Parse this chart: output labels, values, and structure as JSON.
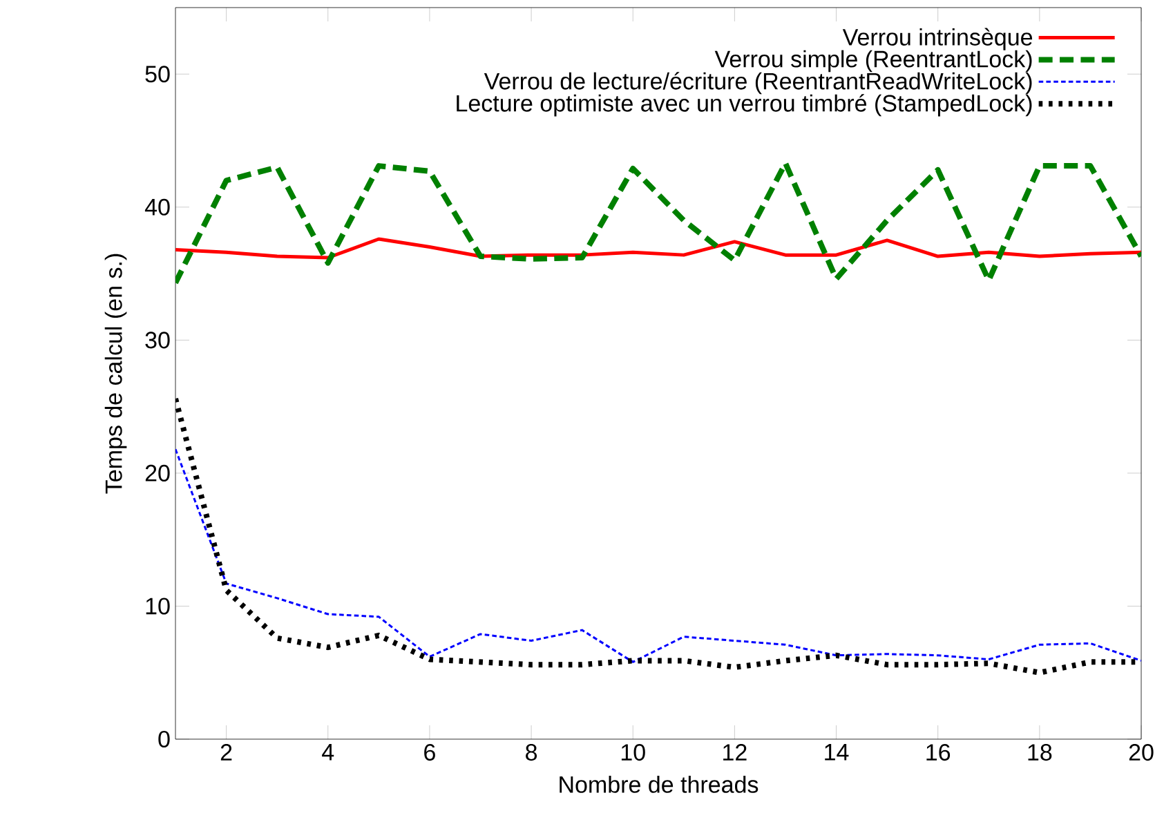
{
  "chart_data": {
    "type": "line",
    "xlabel": "Nombre de threads",
    "ylabel": "Temps de calcul (en s.)",
    "x": [
      1,
      2,
      3,
      4,
      5,
      6,
      7,
      8,
      9,
      10,
      11,
      12,
      13,
      14,
      15,
      16,
      17,
      18,
      19,
      20
    ],
    "xlim": [
      1,
      20
    ],
    "xticks": [
      2,
      4,
      6,
      8,
      10,
      12,
      14,
      16,
      18,
      20
    ],
    "ylim": [
      0,
      55
    ],
    "yticks": [
      0,
      10,
      20,
      30,
      40,
      50
    ],
    "grid": false,
    "legend": "top right",
    "marker": "none",
    "series": [
      {
        "name": "Verrou intrinsèque",
        "color": "#ff0000",
        "line_style": "solid",
        "values": [
          36.8,
          36.6,
          36.3,
          36.2,
          37.6,
          37.0,
          36.3,
          36.4,
          36.4,
          36.6,
          36.4,
          37.4,
          36.4,
          36.4,
          37.5,
          36.3,
          36.6,
          36.3,
          36.5,
          36.6
        ]
      },
      {
        "name": "Verrou simple (ReentrantLock)",
        "color": "#008000",
        "line_style": "dashed",
        "values": [
          34.3,
          42.0,
          43.0,
          35.8,
          43.1,
          42.7,
          36.3,
          36.1,
          36.2,
          42.9,
          39.0,
          36.0,
          43.3,
          34.6,
          39.0,
          42.8,
          34.5,
          43.1,
          43.1,
          36.3
        ]
      },
      {
        "name": "Verrou de lecture/écriture (ReentrantReadWriteLock)",
        "color": "#0000ff",
        "line_style": "dashed",
        "values": [
          21.8,
          11.7,
          10.6,
          9.4,
          9.2,
          6.2,
          7.9,
          7.4,
          8.2,
          5.8,
          7.7,
          7.4,
          7.1,
          6.3,
          6.4,
          6.3,
          6.0,
          7.1,
          7.2,
          5.9
        ]
      },
      {
        "name": "Lecture optimiste avec un verrou timbré (StampedLock)",
        "color": "#000000",
        "line_style": "dotted",
        "values": [
          25.6,
          11.2,
          7.6,
          6.9,
          7.8,
          6.0,
          5.8,
          5.6,
          5.6,
          5.9,
          5.9,
          5.4,
          5.9,
          6.3,
          5.6,
          5.6,
          5.7,
          5.0,
          5.8,
          5.8
        ]
      }
    ]
  }
}
